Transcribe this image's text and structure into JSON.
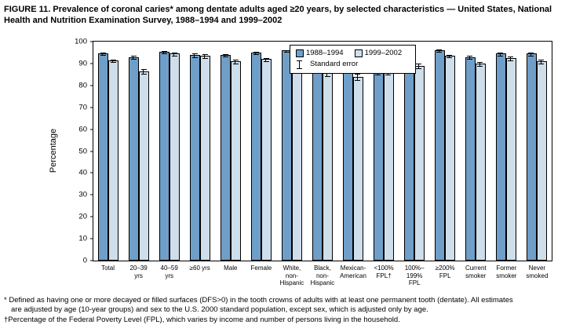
{
  "title": "FIGURE 11. Prevalence of coronal caries* among dentate adults aged ≥20 years, by selected characteristics — United States, National Health and Nutrition Examination Survey, 1988–1994 and 1999–2002",
  "ylabel": "Percentage",
  "legend": {
    "series1": "1988–1994",
    "series2": "1999–2002",
    "se_label": "Standard error"
  },
  "footnotes": {
    "line1": "* Defined as having one or more decayed or filled surfaces (DFS>0) in the tooth crowns of adults with at least one permanent tooth (dentate). All estimates",
    "line2": "are adjusted by age (10-year groups) and sex to the U.S. 2000 standard population, except sex, which is adjusted only by age.",
    "line3": "†Percentage of the Federal Poverty Level (FPL), which varies by income and number of persons living in the household."
  },
  "chart_data": {
    "type": "bar",
    "title": "Prevalence of coronal caries among dentate adults aged ≥20 years, 1988–1994 and 1999–2002",
    "xlabel": "",
    "ylabel": "Percentage",
    "ylim": [
      0,
      100
    ],
    "ytick_step": 10,
    "grid": false,
    "legend_position": "top-center-inside",
    "categories": [
      "Total",
      "20–39 yrs",
      "40–59 yrs",
      "≥60 yrs",
      "Male",
      "Female",
      "White, non-Hispanic",
      "Black, non-Hispanic",
      "Mexican-American",
      "<100% FPL†",
      "100%–199% FPL",
      "≥200% FPL",
      "Current smoker",
      "Former smoker",
      "Never smoked"
    ],
    "category_label_lines": [
      [
        "Total"
      ],
      [
        "20–39",
        "yrs"
      ],
      [
        "40–59",
        "yrs"
      ],
      [
        "≥60 yrs"
      ],
      [
        "Male"
      ],
      [
        "Female"
      ],
      [
        "White,",
        "non-",
        "Hispanic"
      ],
      [
        "Black,",
        "non-",
        "Hispanic"
      ],
      [
        "Mexican-",
        "American"
      ],
      [
        "<100%",
        "FPL†"
      ],
      [
        "100%–",
        "199%",
        "FPL"
      ],
      [
        "≥200%",
        "FPL"
      ],
      [
        "Current",
        "smoker"
      ],
      [
        "Former",
        "smoker"
      ],
      [
        "Never",
        "smoked"
      ]
    ],
    "series": [
      {
        "name": "1988–1994",
        "color": "#6F9FC8",
        "values": [
          94.5,
          93,
          95.5,
          94,
          94,
          95,
          96,
          88,
          87,
          86.5,
          92.5,
          96,
          93,
          94.5,
          94.5
        ],
        "se": [
          0.7,
          0.8,
          0.7,
          1.0,
          0.8,
          0.7,
          0.6,
          1.0,
          1.2,
          1.5,
          1.2,
          0.7,
          1.0,
          1.0,
          0.8
        ]
      },
      {
        "name": "1999–2002",
        "color": "#CEDEEA",
        "values": [
          91.5,
          86.5,
          94.5,
          93.5,
          91,
          92,
          93.5,
          85.5,
          84,
          86.5,
          89,
          93.5,
          90,
          92.5,
          91
        ],
        "se": [
          0.8,
          1.3,
          0.8,
          1.0,
          1.0,
          0.8,
          0.8,
          1.2,
          1.5,
          1.5,
          1.3,
          0.8,
          1.2,
          1.2,
          1.0
        ]
      }
    ]
  }
}
